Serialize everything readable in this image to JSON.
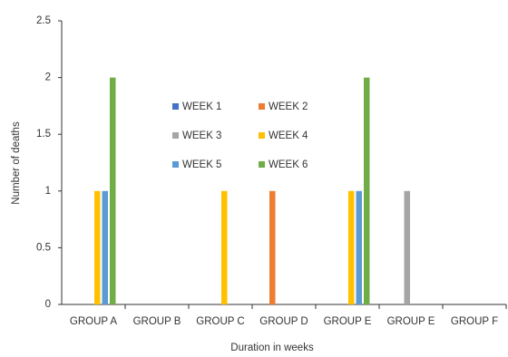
{
  "chart_data": {
    "type": "bar",
    "x_label": "Duration in weeks",
    "y_label": "Number of deaths",
    "categories": [
      "GROUP A",
      "GROUP B",
      "GROUP C",
      "GROUP D",
      "GROUP E",
      "GROUP E",
      "GROUP F"
    ],
    "series": [
      {
        "name": "WEEK 1",
        "color": "#4472c4",
        "values": [
          0,
          0,
          0,
          0,
          0,
          0,
          0
        ]
      },
      {
        "name": "WEEK 2",
        "color": "#ed7d31",
        "values": [
          0,
          0,
          0,
          1,
          0,
          0,
          0
        ]
      },
      {
        "name": "WEEK 3",
        "color": "#a5a5a5",
        "values": [
          0,
          0,
          0,
          0,
          0,
          1,
          0
        ]
      },
      {
        "name": "WEEK 4",
        "color": "#ffc000",
        "values": [
          1,
          0,
          1,
          0,
          1,
          0,
          0
        ]
      },
      {
        "name": "WEEK 5",
        "color": "#5b9bd5",
        "values": [
          1,
          0,
          0,
          0,
          1,
          0,
          0
        ]
      },
      {
        "name": "WEEK 6",
        "color": "#70ad47",
        "values": [
          2,
          0,
          0,
          0,
          2,
          0,
          0
        ]
      }
    ],
    "ylim": [
      0,
      2.5
    ],
    "yticks": [
      0,
      0.5,
      1,
      1.5,
      2,
      2.5
    ],
    "grid": false
  }
}
